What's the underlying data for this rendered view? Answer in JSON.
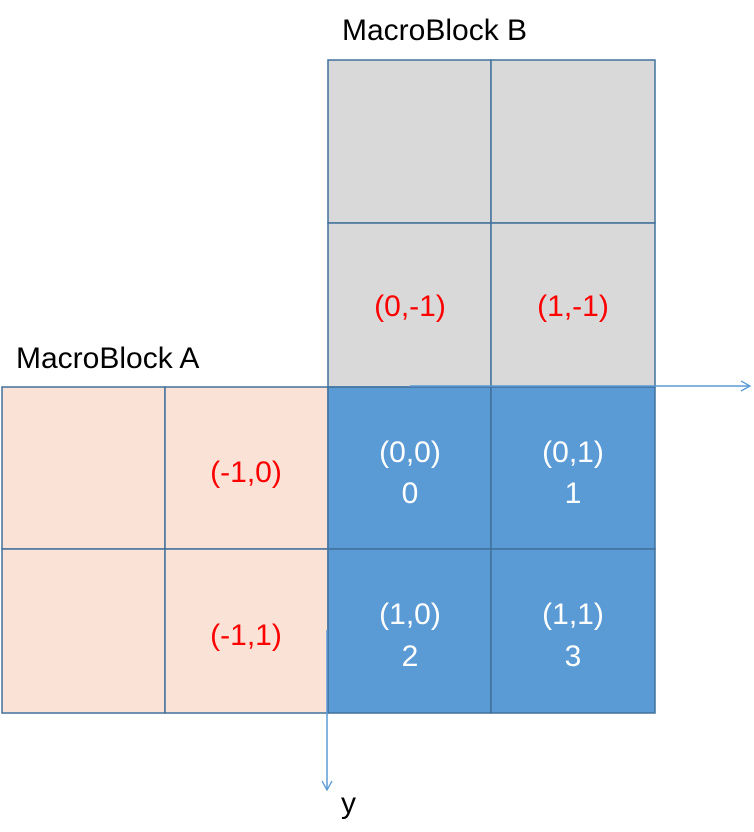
{
  "labels": {
    "macroblock_b": "MacroBlock B",
    "macroblock_a": "MacroBlock A",
    "y_axis": "y"
  },
  "block_b": {
    "cells": [
      {
        "text": ""
      },
      {
        "text": ""
      },
      {
        "text": "(0,-1)"
      },
      {
        "text": "(1,-1)"
      }
    ]
  },
  "block_a": {
    "cells": [
      {
        "text": ""
      },
      {
        "text": "(-1,0)"
      },
      {
        "text": ""
      },
      {
        "text": "(-1,1)"
      }
    ]
  },
  "current_block": {
    "cells": [
      {
        "coord": "(0,0)",
        "index": "0"
      },
      {
        "coord": "(0,1)",
        "index": "1"
      },
      {
        "coord": "(1,0)",
        "index": "2"
      },
      {
        "coord": "(1,1)",
        "index": "3"
      }
    ]
  },
  "colors": {
    "block_b_fill": "#d9d9d9",
    "block_a_fill": "#fae3d6",
    "current_fill": "#5b9bd5",
    "border": "#41719c",
    "neighbor_text": "#ff0000",
    "current_text": "#ffffff",
    "axis": "#5b9bd5"
  }
}
